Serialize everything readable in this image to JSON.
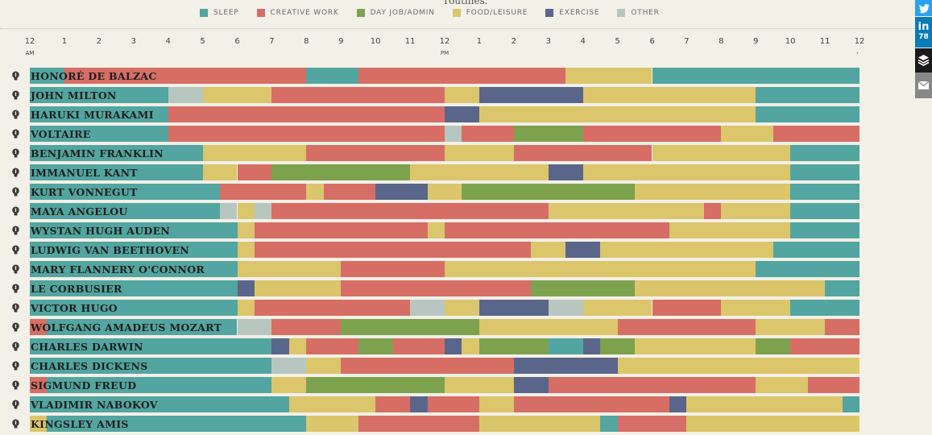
{
  "header": {
    "cut_text": "routines."
  },
  "legend": [
    {
      "key": "sleep",
      "label": "SLEEP",
      "color": "#52a5a0"
    },
    {
      "key": "creative",
      "label": "CREATIVE WORK",
      "color": "#d66e65"
    },
    {
      "key": "dayjob",
      "label": "DAY JOB/ADMIN",
      "color": "#7da24e"
    },
    {
      "key": "food",
      "label": "FOOD/LEISURE",
      "color": "#dbc66c"
    },
    {
      "key": "exercise",
      "label": "EXERCISE",
      "color": "#5a6689"
    },
    {
      "key": "other",
      "label": "OTHER",
      "color": "#b7c7c0"
    }
  ],
  "share": {
    "linkedin_label": "in",
    "linkedin_count": "78"
  },
  "chart_data": {
    "type": "table",
    "title": "Daily routines",
    "x_range": [
      0,
      24
    ],
    "x_ticks": [
      {
        "hour": 0,
        "label": "12",
        "sub": "AM"
      },
      {
        "hour": 1,
        "label": "1"
      },
      {
        "hour": 2,
        "label": "2"
      },
      {
        "hour": 3,
        "label": "3"
      },
      {
        "hour": 4,
        "label": "4"
      },
      {
        "hour": 5,
        "label": "5"
      },
      {
        "hour": 6,
        "label": "6"
      },
      {
        "hour": 7,
        "label": "7"
      },
      {
        "hour": 8,
        "label": "8"
      },
      {
        "hour": 9,
        "label": "9"
      },
      {
        "hour": 10,
        "label": "10"
      },
      {
        "hour": 11,
        "label": "11"
      },
      {
        "hour": 12,
        "label": "12",
        "sub": "PM"
      },
      {
        "hour": 13,
        "label": "1"
      },
      {
        "hour": 14,
        "label": "2"
      },
      {
        "hour": 15,
        "label": "3"
      },
      {
        "hour": 16,
        "label": "4"
      },
      {
        "hour": 17,
        "label": "5"
      },
      {
        "hour": 18,
        "label": "6"
      },
      {
        "hour": 19,
        "label": "7"
      },
      {
        "hour": 20,
        "label": "8"
      },
      {
        "hour": 21,
        "label": "9"
      },
      {
        "hour": 22,
        "label": "10"
      },
      {
        "hour": 23,
        "label": "11"
      },
      {
        "hour": 24,
        "label": "12"
      }
    ],
    "people": [
      {
        "name": "HONORÉ DE BALZAC",
        "segments": [
          [
            "sleep",
            0,
            1
          ],
          [
            "creative",
            1,
            8
          ],
          [
            "sleep",
            8,
            9.5
          ],
          [
            "creative",
            9.5,
            15.5
          ],
          [
            "food",
            15.5,
            18
          ],
          [
            "sleep",
            18,
            24
          ]
        ]
      },
      {
        "name": "JOHN MILTON",
        "segments": [
          [
            "sleep",
            0,
            4
          ],
          [
            "other",
            4,
            5
          ],
          [
            "food",
            5,
            7
          ],
          [
            "creative",
            7,
            12
          ],
          [
            "food",
            12,
            13
          ],
          [
            "exercise",
            13,
            16
          ],
          [
            "food",
            16,
            21
          ],
          [
            "sleep",
            21,
            24
          ]
        ]
      },
      {
        "name": "HARUKI MURAKAMI",
        "segments": [
          [
            "sleep",
            0,
            4
          ],
          [
            "creative",
            4,
            12
          ],
          [
            "exercise",
            12,
            13
          ],
          [
            "food",
            13,
            21
          ],
          [
            "sleep",
            21,
            24
          ]
        ]
      },
      {
        "name": "VOLTAIRE",
        "segments": [
          [
            "sleep",
            0,
            4
          ],
          [
            "creative",
            4,
            12
          ],
          [
            "other",
            12,
            12.5
          ],
          [
            "creative",
            12.5,
            14
          ],
          [
            "dayjob",
            14,
            16
          ],
          [
            "creative",
            16,
            20
          ],
          [
            "food",
            20,
            21.5
          ],
          [
            "creative",
            21.5,
            24
          ]
        ]
      },
      {
        "name": "BENJAMIN FRANKLIN",
        "segments": [
          [
            "sleep",
            0,
            5
          ],
          [
            "food",
            5,
            8
          ],
          [
            "creative",
            8,
            12
          ],
          [
            "food",
            12,
            14
          ],
          [
            "creative",
            14,
            18
          ],
          [
            "food",
            18,
            22
          ],
          [
            "sleep",
            22,
            24
          ]
        ]
      },
      {
        "name": "IMMANUEL KANT",
        "segments": [
          [
            "sleep",
            0,
            5
          ],
          [
            "food",
            5,
            6
          ],
          [
            "creative",
            6,
            7
          ],
          [
            "dayjob",
            7,
            11
          ],
          [
            "food",
            11,
            15
          ],
          [
            "exercise",
            15,
            16
          ],
          [
            "food",
            16,
            22
          ],
          [
            "sleep",
            22,
            24
          ]
        ]
      },
      {
        "name": "KURT VONNEGUT",
        "segments": [
          [
            "sleep",
            0,
            5.5
          ],
          [
            "creative",
            5.5,
            8
          ],
          [
            "food",
            8,
            8.5
          ],
          [
            "creative",
            8.5,
            10
          ],
          [
            "exercise",
            10,
            11.5
          ],
          [
            "food",
            11.5,
            12.5
          ],
          [
            "dayjob",
            12.5,
            17.5
          ],
          [
            "food",
            17.5,
            22
          ],
          [
            "sleep",
            22,
            24
          ]
        ]
      },
      {
        "name": "MAYA ANGELOU",
        "segments": [
          [
            "sleep",
            0,
            5.5
          ],
          [
            "other",
            5.5,
            6
          ],
          [
            "food",
            6,
            6.5
          ],
          [
            "other",
            6.5,
            7
          ],
          [
            "creative",
            7,
            15
          ],
          [
            "food",
            15,
            19.5
          ],
          [
            "creative",
            19.5,
            20
          ],
          [
            "food",
            20,
            22
          ],
          [
            "sleep",
            22,
            24
          ]
        ]
      },
      {
        "name": "WYSTAN HUGH AUDEN",
        "segments": [
          [
            "sleep",
            0,
            6
          ],
          [
            "food",
            6,
            6.5
          ],
          [
            "creative",
            6.5,
            11.5
          ],
          [
            "food",
            11.5,
            12
          ],
          [
            "creative",
            12,
            18.5
          ],
          [
            "food",
            18.5,
            22
          ],
          [
            "sleep",
            22,
            24
          ]
        ]
      },
      {
        "name": "LUDWIG VAN BEETHOVEN",
        "segments": [
          [
            "sleep",
            0,
            6
          ],
          [
            "food",
            6,
            6.5
          ],
          [
            "creative",
            6.5,
            14.5
          ],
          [
            "food",
            14.5,
            15.5
          ],
          [
            "exercise",
            15.5,
            16.5
          ],
          [
            "food",
            16.5,
            21.5
          ],
          [
            "sleep",
            21.5,
            24
          ]
        ]
      },
      {
        "name": "MARY FLANNERY O'CONNOR",
        "segments": [
          [
            "sleep",
            0,
            6
          ],
          [
            "food",
            6,
            9
          ],
          [
            "creative",
            9,
            12
          ],
          [
            "food",
            12,
            21
          ],
          [
            "sleep",
            21,
            24
          ]
        ]
      },
      {
        "name": "LE CORBUSIER",
        "segments": [
          [
            "sleep",
            0,
            6
          ],
          [
            "exercise",
            6,
            6.5
          ],
          [
            "food",
            6.5,
            9
          ],
          [
            "creative",
            9,
            14.5
          ],
          [
            "dayjob",
            14.5,
            17.5
          ],
          [
            "food",
            17.5,
            23
          ],
          [
            "sleep",
            23,
            24
          ]
        ]
      },
      {
        "name": "VICTOR HUGO",
        "segments": [
          [
            "sleep",
            0,
            6
          ],
          [
            "food",
            6,
            6.5
          ],
          [
            "creative",
            6.5,
            11
          ],
          [
            "other",
            11,
            12
          ],
          [
            "food",
            12,
            13
          ],
          [
            "exercise",
            13,
            15
          ],
          [
            "other",
            15,
            16
          ],
          [
            "food",
            16,
            18
          ],
          [
            "creative",
            18,
            20
          ],
          [
            "food",
            20,
            22
          ],
          [
            "sleep",
            22,
            24
          ]
        ]
      },
      {
        "name": "WOLFGANG AMADEUS MOZART",
        "segments": [
          [
            "creative",
            0,
            0.5
          ],
          [
            "sleep",
            0.5,
            6
          ],
          [
            "other",
            6,
            7
          ],
          [
            "creative",
            7,
            9
          ],
          [
            "dayjob",
            9,
            13
          ],
          [
            "food",
            13,
            17
          ],
          [
            "creative",
            17,
            21
          ],
          [
            "food",
            21,
            23
          ],
          [
            "creative",
            23,
            24
          ]
        ]
      },
      {
        "name": "CHARLES DARWIN",
        "segments": [
          [
            "sleep",
            0,
            7
          ],
          [
            "exercise",
            7,
            7.5
          ],
          [
            "food",
            7.5,
            8
          ],
          [
            "creative",
            8,
            9.5
          ],
          [
            "dayjob",
            9.5,
            10.5
          ],
          [
            "creative",
            10.5,
            12
          ],
          [
            "exercise",
            12,
            12.5
          ],
          [
            "food",
            12.5,
            13
          ],
          [
            "dayjob",
            13,
            15
          ],
          [
            "sleep",
            15,
            16
          ],
          [
            "exercise",
            16,
            16.5
          ],
          [
            "dayjob",
            16.5,
            17.5
          ],
          [
            "food",
            17.5,
            21
          ],
          [
            "dayjob",
            21,
            22
          ],
          [
            "creative",
            22,
            24
          ]
        ]
      },
      {
        "name": "CHARLES DICKENS",
        "segments": [
          [
            "sleep",
            0,
            7
          ],
          [
            "other",
            7,
            8
          ],
          [
            "food",
            8,
            9
          ],
          [
            "creative",
            9,
            14
          ],
          [
            "exercise",
            14,
            17
          ],
          [
            "food",
            17,
            24
          ]
        ]
      },
      {
        "name": "SIGMUND FREUD",
        "segments": [
          [
            "creative",
            0,
            0.5
          ],
          [
            "sleep",
            0.5,
            7
          ],
          [
            "food",
            7,
            8
          ],
          [
            "dayjob",
            8,
            12
          ],
          [
            "food",
            12,
            14
          ],
          [
            "exercise",
            14,
            15
          ],
          [
            "creative",
            15,
            21
          ],
          [
            "food",
            21,
            22.5
          ],
          [
            "creative",
            22.5,
            24
          ]
        ]
      },
      {
        "name": "VLADIMIR NABOKOV",
        "segments": [
          [
            "sleep",
            0,
            7.5
          ],
          [
            "food",
            7.5,
            10
          ],
          [
            "creative",
            10,
            11
          ],
          [
            "exercise",
            11,
            11.5
          ],
          [
            "creative",
            11.5,
            13
          ],
          [
            "food",
            13,
            14
          ],
          [
            "creative",
            14,
            18.5
          ],
          [
            "exercise",
            18.5,
            19
          ],
          [
            "food",
            19,
            23.5
          ],
          [
            "sleep",
            23.5,
            24
          ]
        ]
      },
      {
        "name": "KINGSLEY AMIS",
        "segments": [
          [
            "food",
            0,
            0.5
          ],
          [
            "sleep",
            0.5,
            8
          ],
          [
            "food",
            8,
            9.5
          ],
          [
            "creative",
            9.5,
            13
          ],
          [
            "food",
            13,
            16.5
          ],
          [
            "sleep",
            16.5,
            17
          ],
          [
            "creative",
            17,
            19
          ],
          [
            "food",
            19,
            24
          ]
        ]
      }
    ]
  }
}
